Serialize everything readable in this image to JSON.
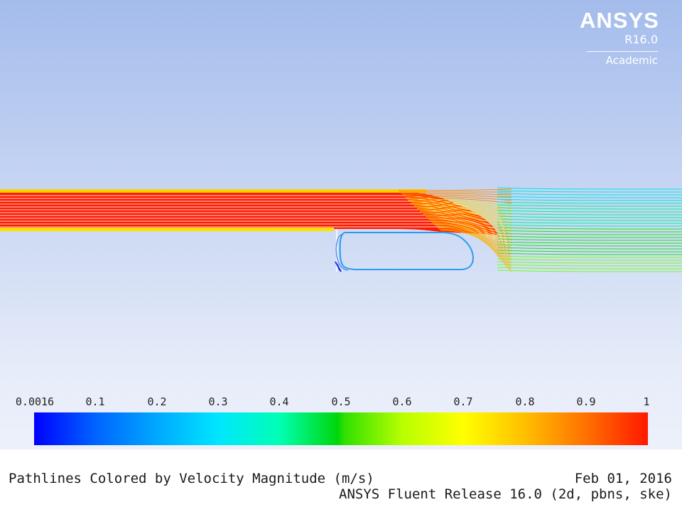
{
  "logo": {
    "name": "ANSYS",
    "release": "R16.0",
    "edition": "Academic"
  },
  "plot": {
    "quantity": "Velocity Magnitude",
    "units": "m/s",
    "colormap": [
      "#0000ff",
      "#00a8ff",
      "#00ffff",
      "#00ff80",
      "#00d000",
      "#b8ff00",
      "#ffff00",
      "#ffa000",
      "#ff1800"
    ]
  },
  "colorbar": {
    "min": 0.0016,
    "max": 1,
    "tick_labels": [
      "0.0016",
      "0.1",
      "0.2",
      "0.3",
      "0.4",
      "0.5",
      "0.6",
      "0.7",
      "0.8",
      "0.9",
      "1"
    ]
  },
  "footer": {
    "title": "Pathlines Colored by Velocity Magnitude (m/s)",
    "date": "Feb 01, 2016",
    "release": "ANSYS Fluent Release 16.0 (2d, pbns, ske)"
  }
}
